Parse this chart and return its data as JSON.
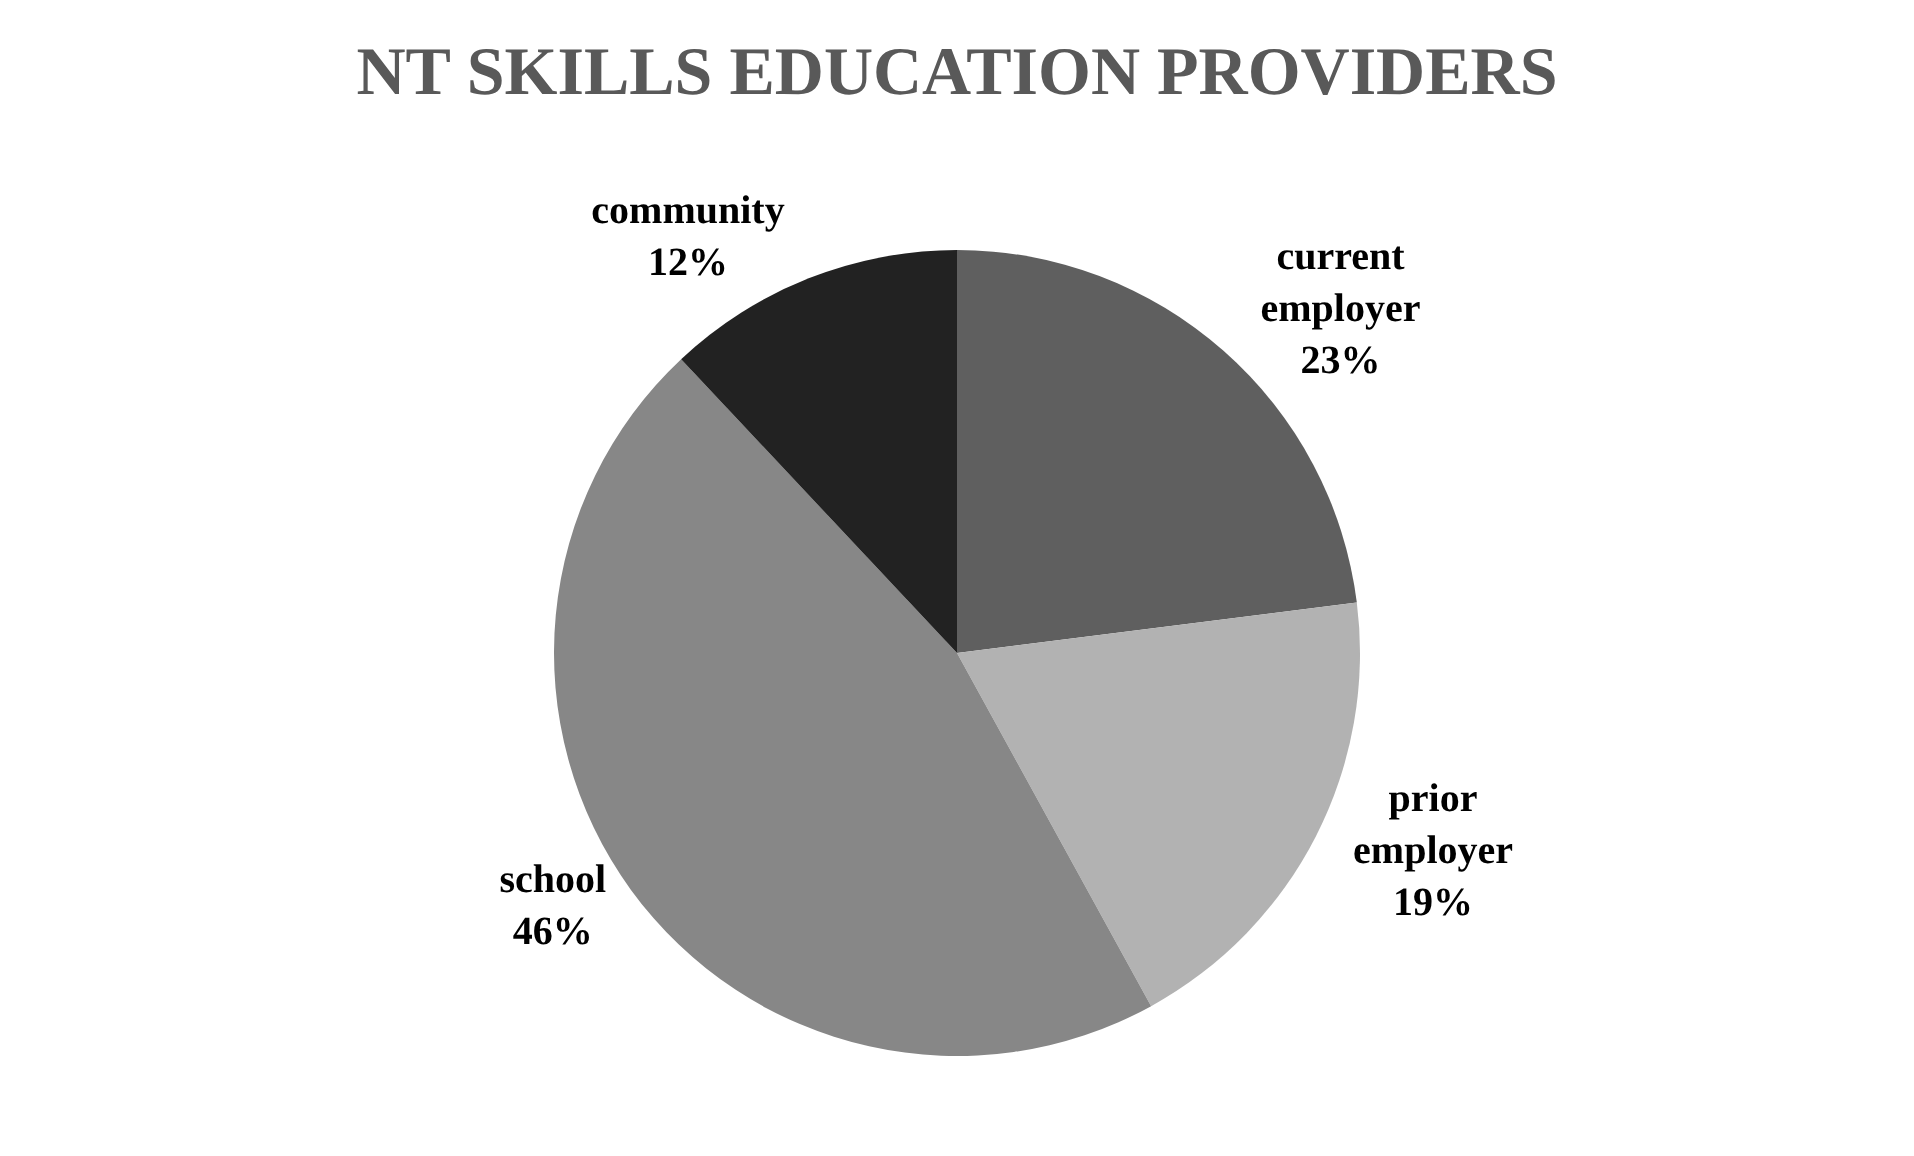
{
  "chart_data": {
    "type": "pie",
    "title": "NT SKILLS EDUCATION PROVIDERS",
    "categories": [
      "current employer",
      "prior employer",
      "school",
      "community"
    ],
    "values": [
      23,
      19,
      46,
      12
    ],
    "colors": [
      "#5f5f5f",
      "#b2b2b2",
      "#878787",
      "#222222"
    ],
    "value_labels": [
      "23%",
      "19%",
      "46%",
      "12%"
    ],
    "legend": false
  }
}
